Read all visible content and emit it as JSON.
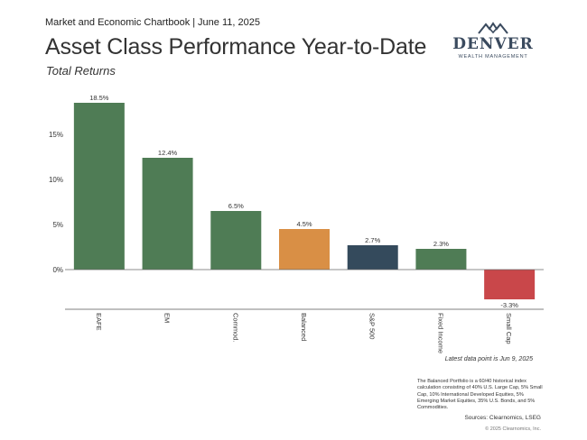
{
  "header": {
    "chartbook": "Market and Economic Chartbook",
    "date": "June 11, 2025"
  },
  "title": "Asset Class Performance Year-to-Date",
  "subtitle": "Total Returns",
  "logo": {
    "name": "DENVER",
    "tagline": "WEALTH MANAGEMENT",
    "color": "#3a4a5e"
  },
  "chart_data": {
    "type": "bar",
    "categories": [
      "EAFE",
      "EM",
      "Commod.",
      "Balanced",
      "S&P 500",
      "Fixed Income",
      "Small Cap"
    ],
    "values": [
      18.5,
      12.4,
      6.5,
      4.5,
      2.7,
      2.3,
      -3.3
    ],
    "value_labels": [
      "18.5%",
      "12.4%",
      "6.5%",
      "4.5%",
      "2.7%",
      "2.3%",
      "-3.3%"
    ],
    "colors": [
      "#4f7c55",
      "#4f7c55",
      "#4f7c55",
      "#d98f45",
      "#344a5c",
      "#4f7c55",
      "#c9474a"
    ],
    "yticks": [
      0,
      5,
      10,
      15
    ],
    "ytick_labels": [
      "0%",
      "5%",
      "10%",
      "15%"
    ],
    "ylim": [
      -3.3,
      18.5
    ],
    "grid": false,
    "title": "",
    "xlabel": "",
    "ylabel": ""
  },
  "notes": {
    "latest": "Latest data point is Jun 9, 2025",
    "footnote": "The Balanced Portfolio is a 60/40 historical index calculation consisting of 40% U.S. Large Cap, 5% Small Cap, 10% International Developed Equities, 5% Emerging Market Equities, 35% U.S. Bonds, and 5% Commodities.",
    "sources": "Sources: Clearnomics, LSEG",
    "copyright": "© 2025 Clearnomics, Inc."
  }
}
